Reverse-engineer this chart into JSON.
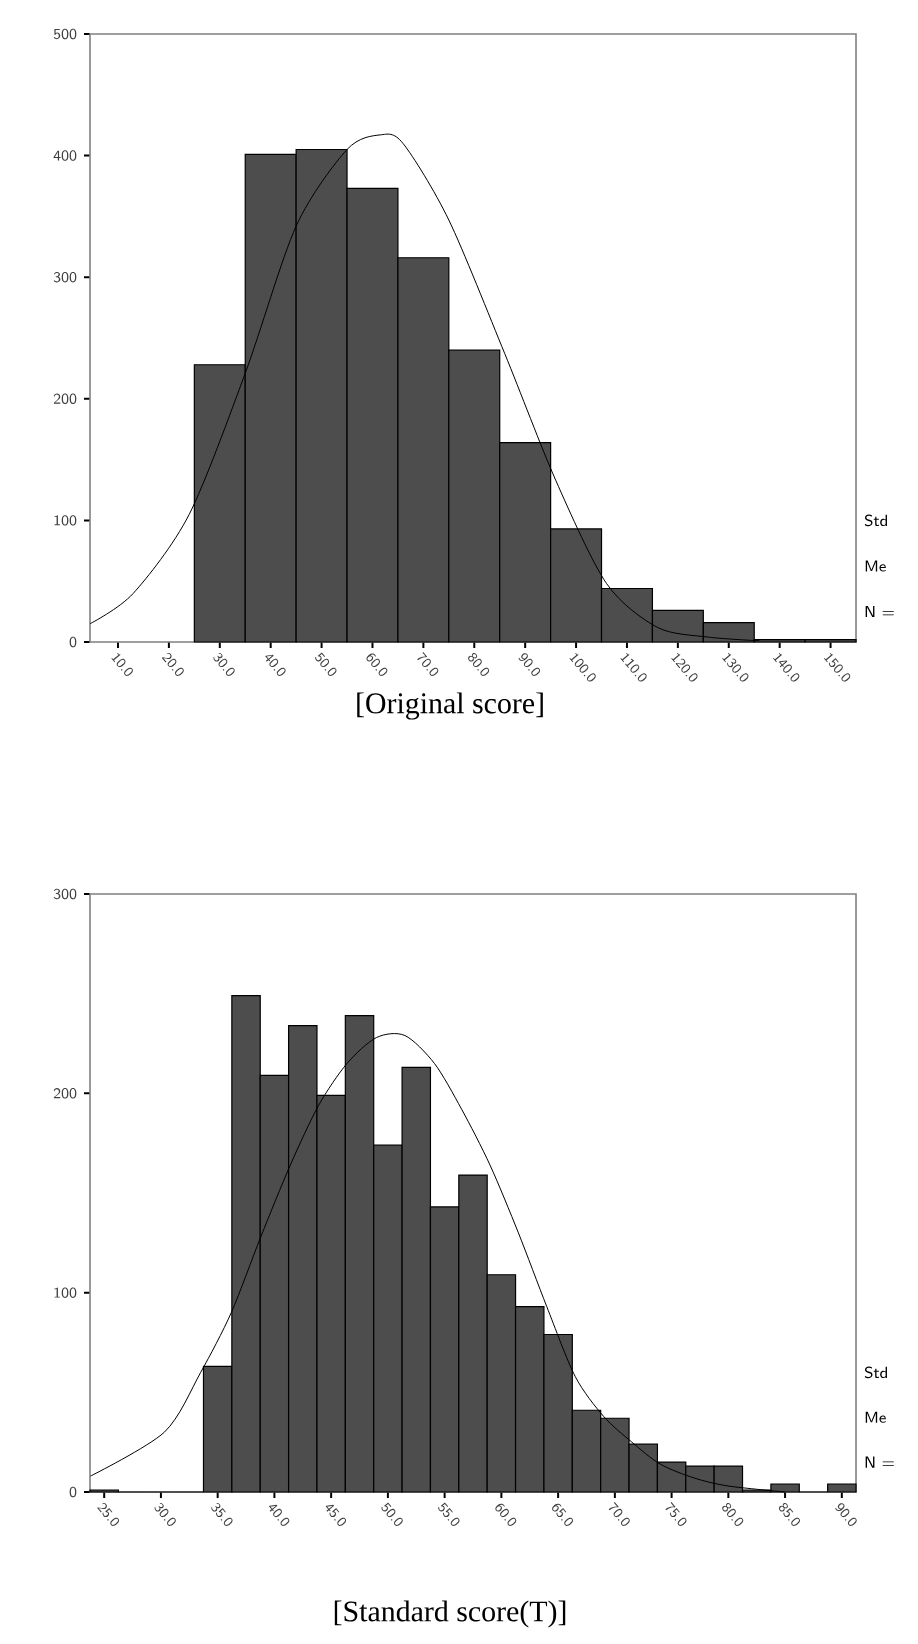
{
  "chart_data": [
    {
      "type": "histogram",
      "xlabel": "[Original score]",
      "color": "#4d4d4d",
      "bins": [
        25,
        35,
        45,
        55,
        65,
        75,
        85,
        95,
        105,
        115,
        125,
        135,
        145,
        155
      ],
      "values": [
        228,
        401,
        405,
        373,
        316,
        240,
        164,
        93,
        44,
        26,
        16,
        2,
        2
      ],
      "series": [
        {
          "type": "line",
          "color": "#000000",
          "x": [
            4.5,
            13,
            24,
            35,
            45,
            55,
            61.5,
            66,
            75,
            86,
            96,
            106,
            116,
            126,
            136
          ],
          "values": [
            15,
            40,
            105,
            221,
            342,
            405,
            417,
            410,
            347,
            237,
            133,
            48,
            12,
            4,
            1
          ]
        }
      ],
      "xlim": [
        4.5,
        155
      ],
      "xticks": [
        {
          "value": 10,
          "label": "10.0"
        },
        {
          "value": 20,
          "label": "20.0"
        },
        {
          "value": 30,
          "label": "30.0"
        },
        {
          "value": 40,
          "label": "40.0"
        },
        {
          "value": 50,
          "label": "50.0"
        },
        {
          "value": 60,
          "label": "60.0"
        },
        {
          "value": 70,
          "label": "70.0"
        },
        {
          "value": 80,
          "label": "80.0"
        },
        {
          "value": 90,
          "label": "90.0"
        },
        {
          "value": 100,
          "label": "100.0"
        },
        {
          "value": 110,
          "label": "110.0"
        },
        {
          "value": 120,
          "label": "120.0"
        },
        {
          "value": 130,
          "label": "130.0"
        },
        {
          "value": 140,
          "label": "140.0"
        },
        {
          "value": 150,
          "label": "150.0"
        }
      ],
      "ylim": [
        0,
        500
      ],
      "yticks": [
        0,
        100,
        200,
        300,
        400,
        500
      ],
      "annotations": [
        "Std",
        "Me",
        "N ="
      ]
    },
    {
      "type": "histogram",
      "xlabel": "[Standard score(T)]",
      "color": "#4d4d4d",
      "bins": [
        23.75,
        26.25,
        28.75,
        31.25,
        33.75,
        36.25,
        38.75,
        41.25,
        43.75,
        46.25,
        48.75,
        51.25,
        53.75,
        56.25,
        58.75,
        61.25,
        63.75,
        66.25,
        68.75,
        71.25,
        73.75,
        76.25,
        78.75,
        81.25,
        83.75,
        86.25,
        88.75,
        91.25
      ],
      "values": [
        1,
        0,
        0,
        0,
        63,
        249,
        209,
        234,
        199,
        239,
        174,
        213,
        143,
        159,
        109,
        93,
        79,
        41,
        37,
        24,
        15,
        13,
        13,
        1,
        4,
        0,
        4
      ],
      "series": [
        {
          "type": "line",
          "color": "#000000",
          "x": [
            23.8,
            30.3,
            33.5,
            36.2,
            38.8,
            41.4,
            43.9,
            46.4,
            49,
            51.5,
            54.1,
            56.5,
            59,
            61.5,
            64,
            66.5,
            69,
            71.5,
            74,
            77,
            80,
            85
          ],
          "values": [
            8,
            30,
            60,
            90,
            128,
            164,
            194,
            215,
            228,
            229,
            215,
            192,
            164,
            130,
            93,
            58,
            38,
            25,
            14,
            7,
            3,
            0
          ]
        }
      ],
      "xlim": [
        23.75,
        91.25
      ],
      "xticks": [
        {
          "value": 25,
          "label": "25.0"
        },
        {
          "value": 30,
          "label": "30.0"
        },
        {
          "value": 35,
          "label": "35.0"
        },
        {
          "value": 40,
          "label": "40.0"
        },
        {
          "value": 45,
          "label": "45.0"
        },
        {
          "value": 50,
          "label": "50.0"
        },
        {
          "value": 55,
          "label": "55.0"
        },
        {
          "value": 60,
          "label": "60.0"
        },
        {
          "value": 65,
          "label": "65.0"
        },
        {
          "value": 70,
          "label": "70.0"
        },
        {
          "value": 75,
          "label": "75.0"
        },
        {
          "value": 80,
          "label": "80.0"
        },
        {
          "value": 85,
          "label": "85.0"
        },
        {
          "value": 90,
          "label": "90.0"
        }
      ],
      "ylim": [
        0,
        300
      ],
      "yticks": [
        0,
        100,
        200,
        300
      ],
      "annotations": [
        "Std",
        "Me",
        "N ="
      ]
    }
  ]
}
